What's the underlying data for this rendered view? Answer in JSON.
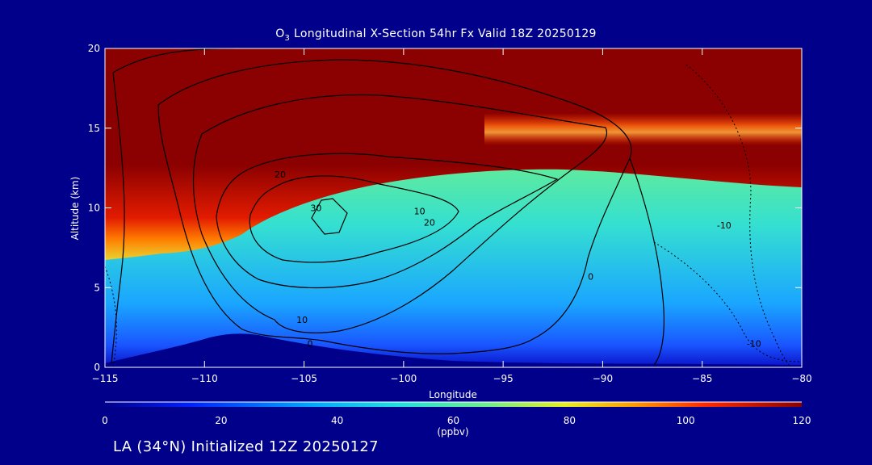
{
  "chart_data": {
    "type": "heatmap",
    "title_prefix": "O",
    "title_subscript": "3",
    "title_suffix": " Longitudinal X-Section 54hr  Fx Valid 18Z 20250129",
    "xlabel": "Longitude",
    "ylabel": "Altitude (km)",
    "xlim": [
      -115,
      -80
    ],
    "ylim": [
      0,
      20
    ],
    "xticks": [
      -115,
      -110,
      -105,
      -100,
      -95,
      -90,
      -85,
      -80
    ],
    "xtick_labels": [
      "−115",
      "−110",
      "−105",
      "−100",
      "−95",
      "−90",
      "−85",
      "−80"
    ],
    "yticks": [
      0,
      5,
      10,
      15,
      20
    ],
    "ytick_labels": [
      "0",
      "5",
      "10",
      "15",
      "20"
    ],
    "colorbar": {
      "range": [
        0,
        120
      ],
      "ticks": [
        0,
        20,
        40,
        60,
        80,
        100,
        120
      ],
      "tick_labels": [
        "0",
        "20",
        "40",
        "60",
        "80",
        "100",
        "120"
      ],
      "unit": "(ppbv)"
    },
    "contours": [
      {
        "label": "10",
        "lon": -99.2,
        "alt": 9.8
      },
      {
        "label": "20",
        "lon": -98.7,
        "alt": 9.1
      },
      {
        "label": "20",
        "lon": -106.2,
        "alt": 12.1
      },
      {
        "label": "30",
        "lon": -104.4,
        "alt": 10.0
      },
      {
        "label": "10",
        "lon": -105.1,
        "alt": 3.0
      },
      {
        "label": "0",
        "lon": -104.7,
        "alt": 1.5
      },
      {
        "label": "0",
        "lon": -90.6,
        "alt": 5.7
      },
      {
        "label": "-10",
        "lon": -83.9,
        "alt": 8.9
      },
      {
        "label": "-10",
        "lon": -82.4,
        "alt": 1.5
      }
    ],
    "grid": false,
    "legend": "none"
  },
  "footer_text": "LA (34°N) Initialized 12Z 20250127"
}
